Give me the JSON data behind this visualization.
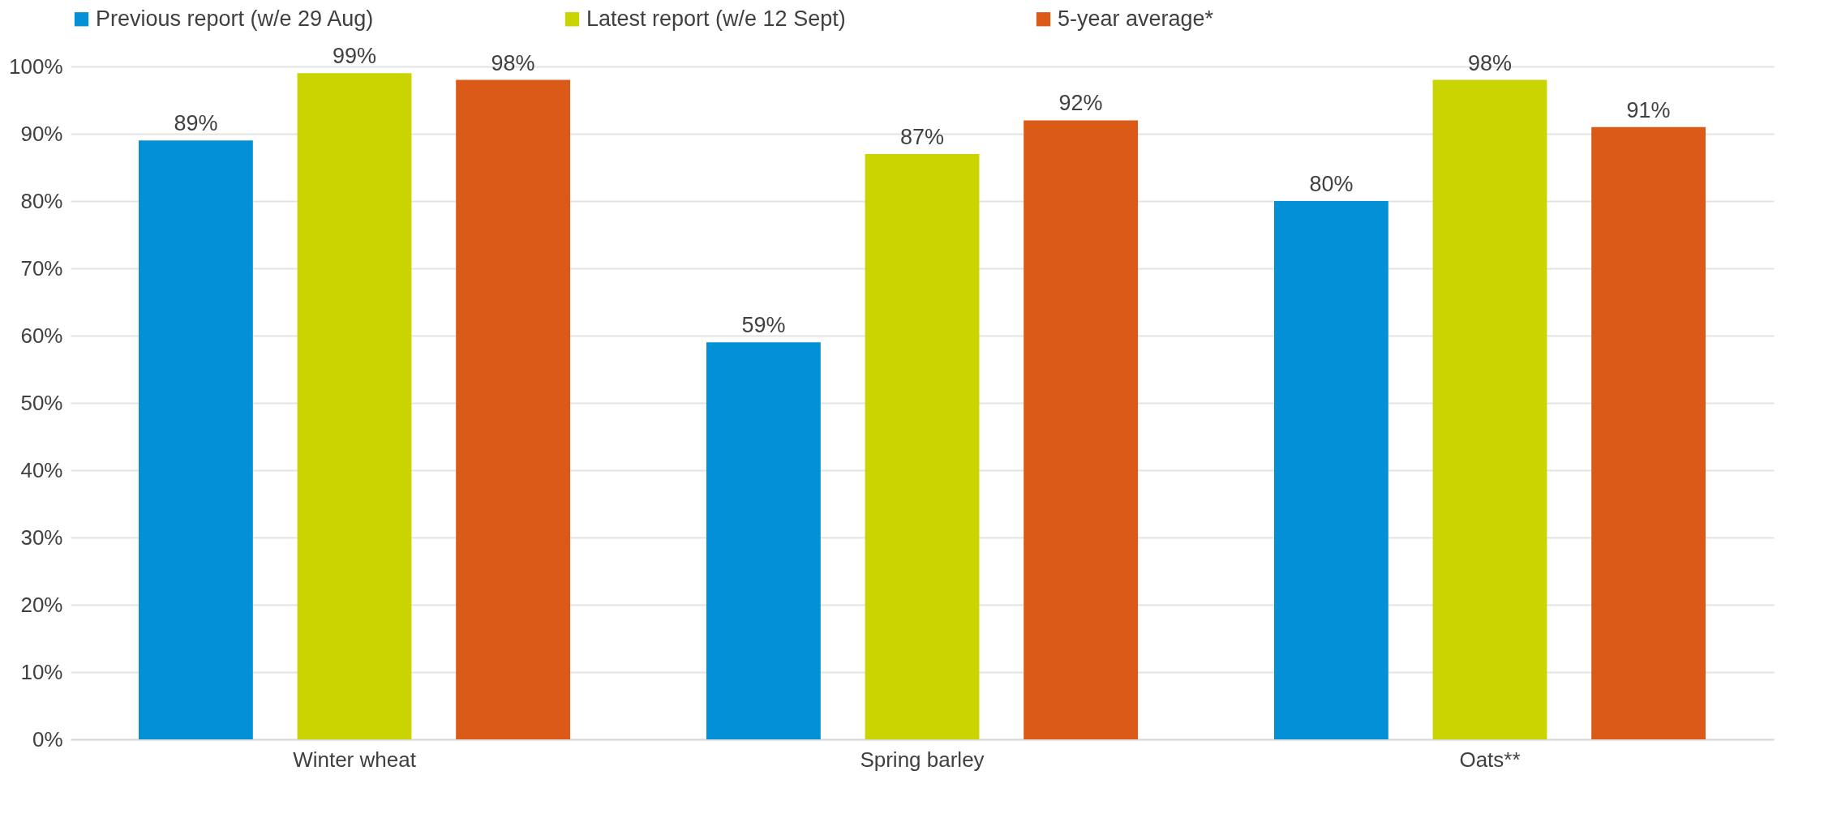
{
  "chart_data": {
    "type": "bar",
    "categories": [
      "Winter wheat",
      "Spring barley",
      "Oats**"
    ],
    "series": [
      {
        "name": "Previous report (w/e 29 Aug)",
        "color": "#0490d6",
        "values": [
          89,
          59,
          80
        ],
        "value_labels": [
          "89%",
          "59%",
          "80%"
        ]
      },
      {
        "name": "Latest report (w/e 12 Sept)",
        "color": "#c9d400",
        "values": [
          99,
          87,
          98
        ],
        "value_labels": [
          "99%",
          "87%",
          "98%"
        ]
      },
      {
        "name": "5-year average*",
        "color": "#db5a17",
        "values": [
          98,
          92,
          91
        ],
        "value_labels": [
          "98%",
          "92%",
          "91%"
        ]
      }
    ],
    "ylim": [
      0,
      100
    ],
    "yticks": [
      {
        "value": 0,
        "label": "0%"
      },
      {
        "value": 10,
        "label": "10%"
      },
      {
        "value": 20,
        "label": "20%"
      },
      {
        "value": 30,
        "label": "30%"
      },
      {
        "value": 40,
        "label": "40%"
      },
      {
        "value": 50,
        "label": "50%"
      },
      {
        "value": 60,
        "label": "60%"
      },
      {
        "value": 70,
        "label": "70%"
      },
      {
        "value": 80,
        "label": "80%"
      },
      {
        "value": 90,
        "label": "90%"
      },
      {
        "value": 100,
        "label": "100%"
      }
    ],
    "grid": "y",
    "legend": "top"
  }
}
